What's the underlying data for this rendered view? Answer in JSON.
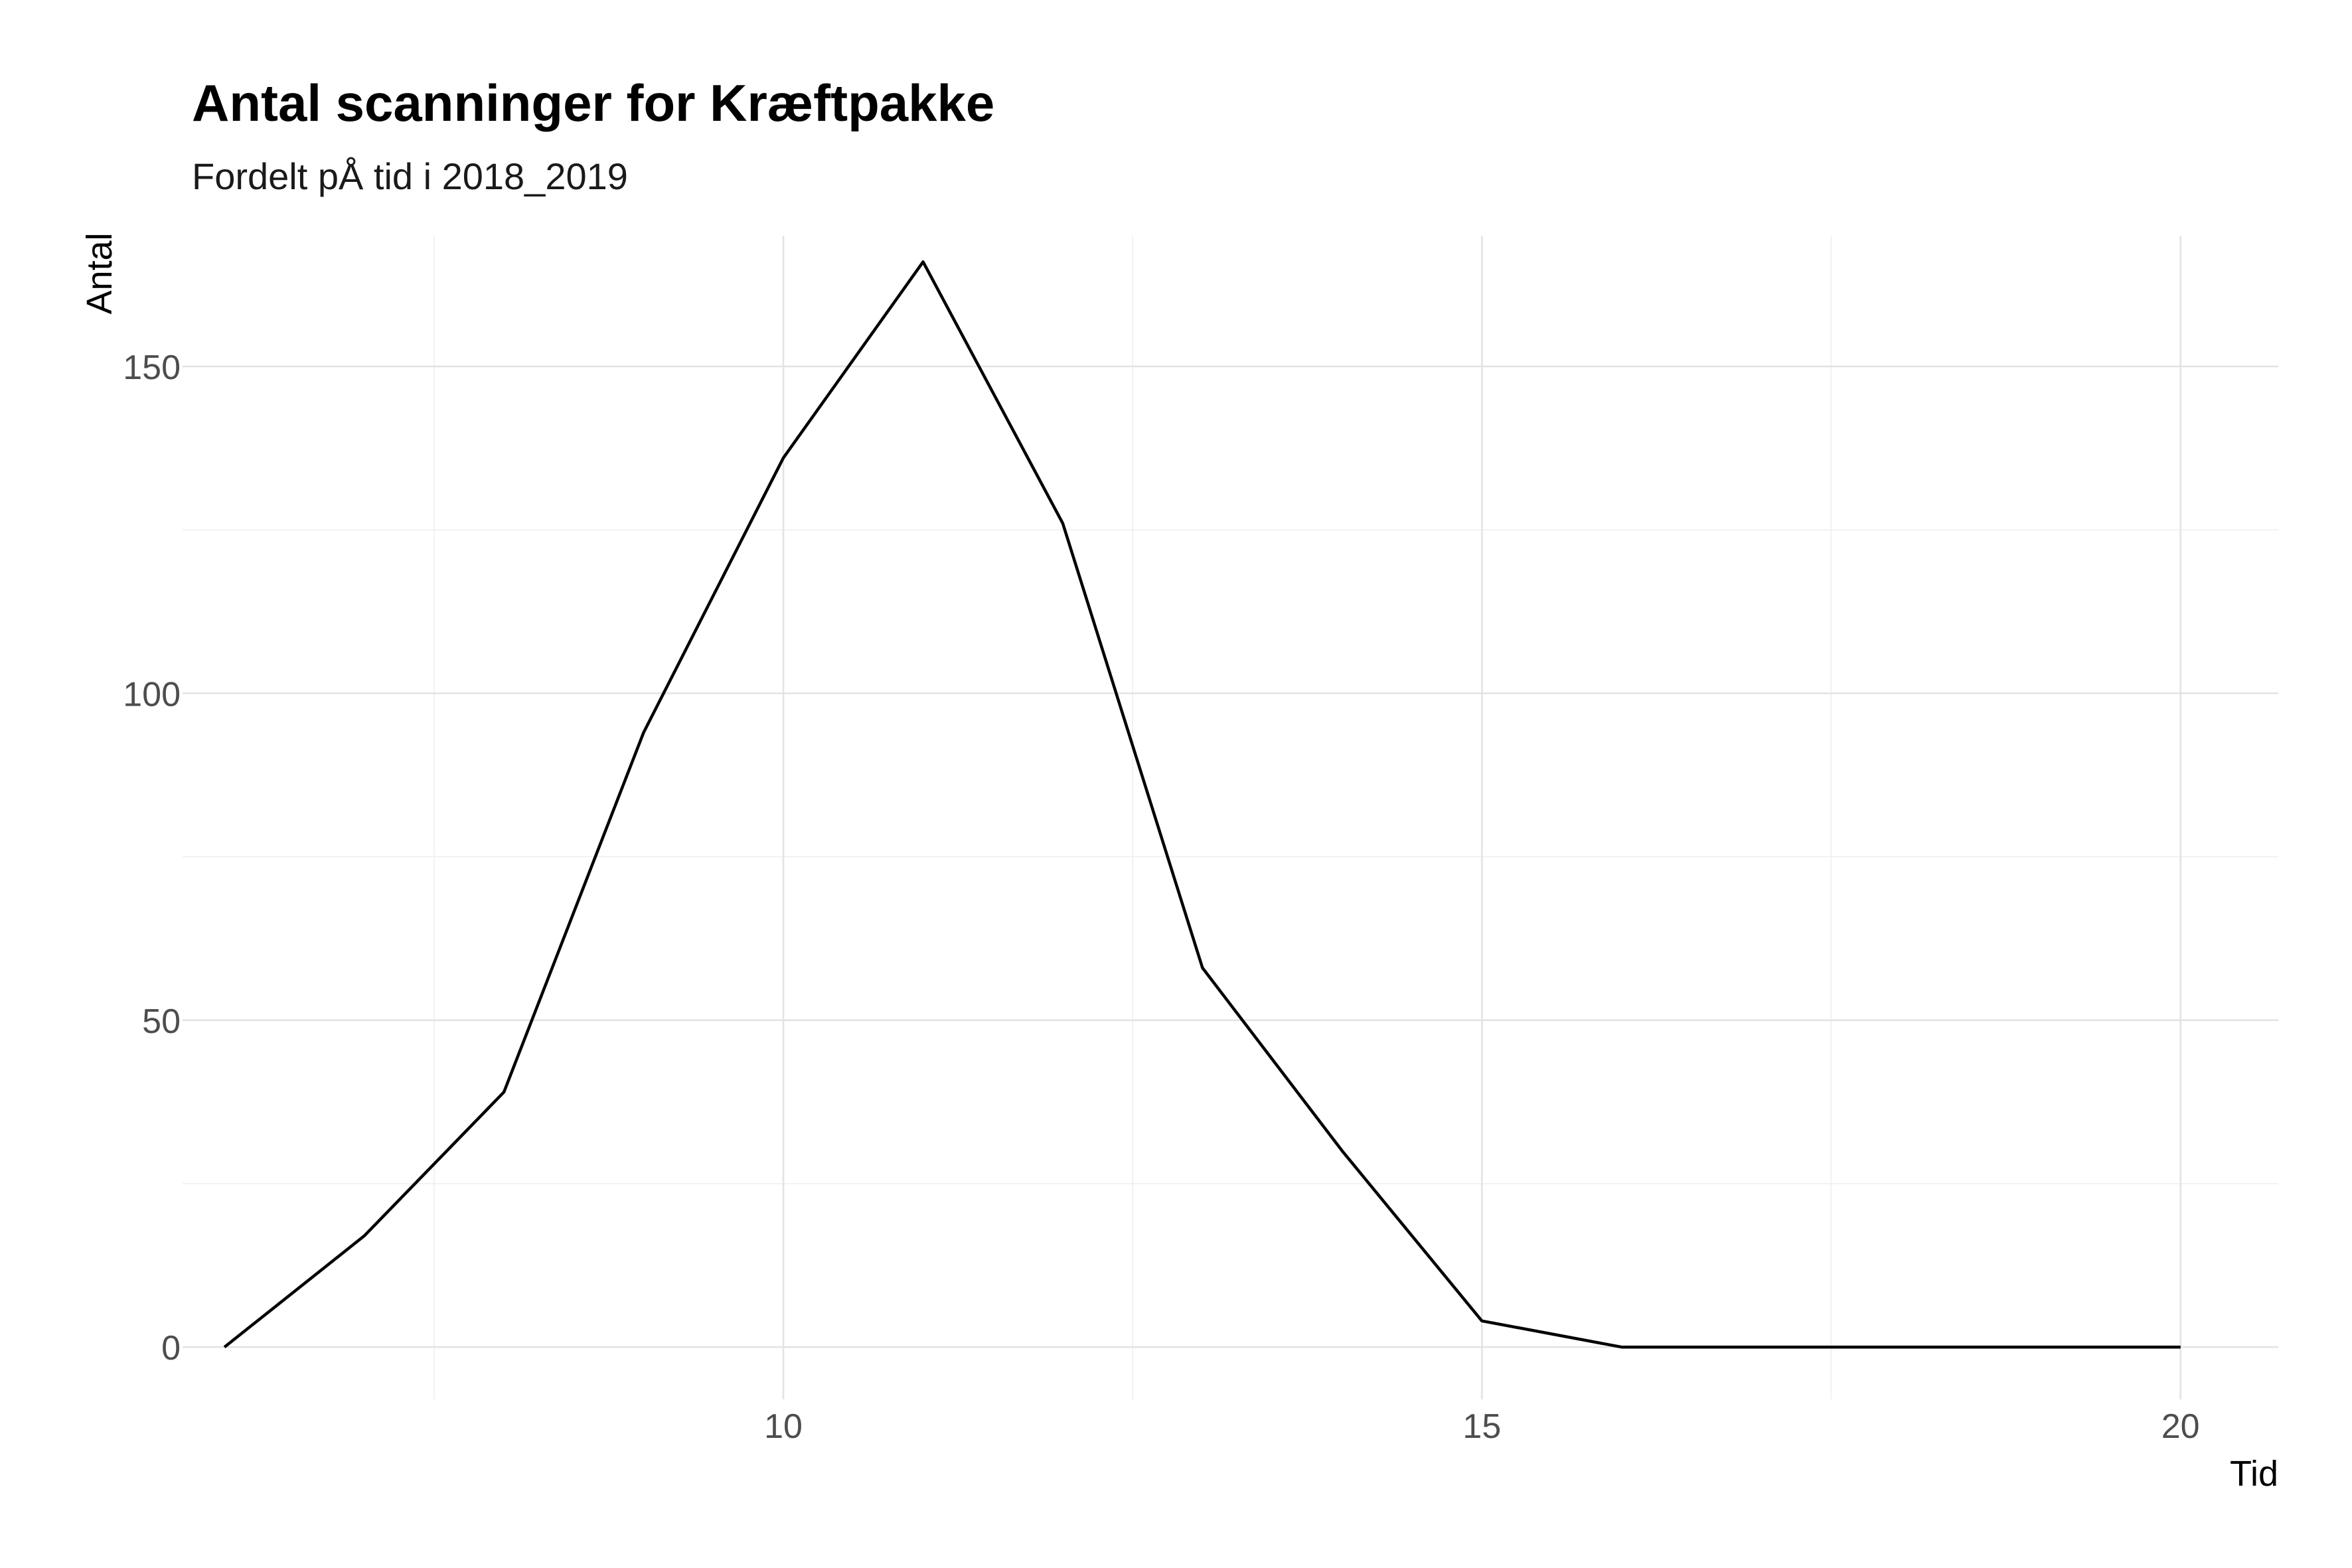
{
  "chart_data": {
    "type": "line",
    "title": "Antal scanninger for Kræftpakke",
    "subtitle": "Fordelt pÅ tid i 2018_2019",
    "xlabel": "Tid",
    "ylabel": "Antal",
    "xlim": [
      5.7,
      20.7
    ],
    "ylim": [
      -8,
      170
    ],
    "x_ticks": [
      10,
      15,
      20
    ],
    "y_ticks": [
      0,
      50,
      100,
      150
    ],
    "x_minor": [
      7.5,
      12.5,
      17.5
    ],
    "y_minor": [
      25,
      75,
      125
    ],
    "grid": true,
    "legend": "none",
    "colors": {
      "line": "#000000",
      "grid_major": "#e3e3e3",
      "grid_minor": "#efefef",
      "tick_text": "#4d4d4d"
    },
    "series": [
      {
        "x": [
          6,
          7,
          8,
          9,
          10,
          11,
          12,
          13,
          14,
          15,
          16,
          17,
          18,
          19,
          20
        ],
        "values": [
          0,
          17,
          39,
          94,
          136,
          166,
          126,
          58,
          30,
          4,
          0,
          0,
          0,
          0,
          0
        ]
      }
    ]
  }
}
